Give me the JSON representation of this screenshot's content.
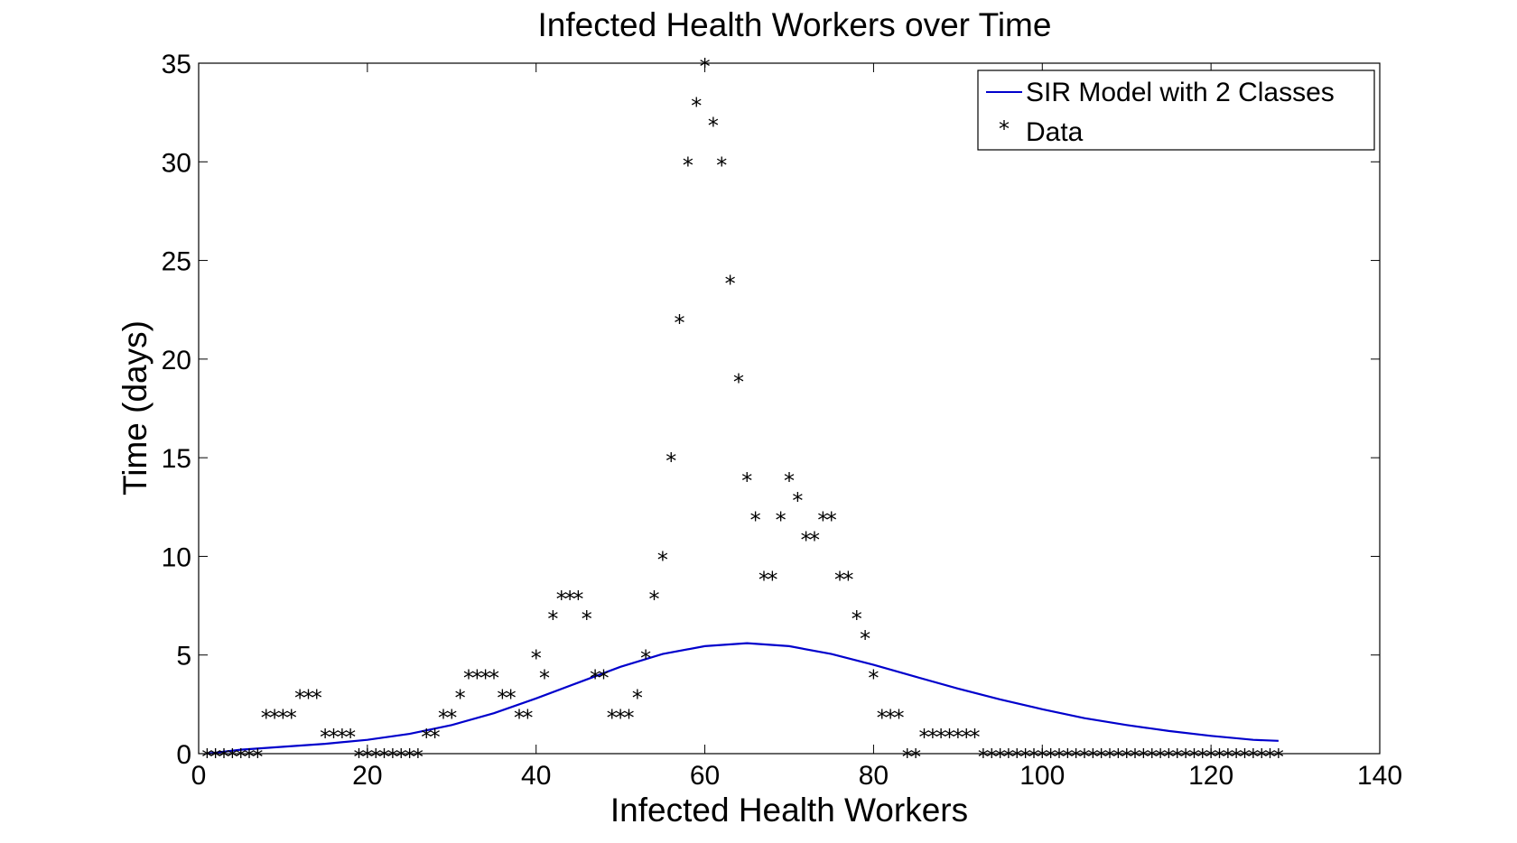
{
  "chart_data": {
    "type": "scatter",
    "title": "Infected Health Workers over Time",
    "xlabel": "Infected Health Workers",
    "ylabel": "Time (days)",
    "xlim": [
      0,
      140
    ],
    "ylim": [
      0,
      35
    ],
    "xticks": [
      "0",
      "20",
      "40",
      "60",
      "80",
      "100",
      "120",
      "140"
    ],
    "yticks": [
      "0",
      "5",
      "10",
      "15",
      "20",
      "25",
      "30",
      "35"
    ],
    "grid": false,
    "legend_position": "top-right",
    "series": [
      {
        "name": "SIR Model with 2 Classes",
        "kind": "line",
        "color": "#0000cc",
        "x": [
          1,
          5,
          10,
          15,
          20,
          25,
          30,
          35,
          40,
          45,
          50,
          55,
          60,
          65,
          70,
          75,
          80,
          85,
          90,
          95,
          100,
          105,
          110,
          115,
          120,
          125,
          128
        ],
        "y": [
          0.0,
          0.2,
          0.35,
          0.5,
          0.7,
          1.0,
          1.45,
          2.05,
          2.8,
          3.6,
          4.4,
          5.05,
          5.45,
          5.6,
          5.45,
          5.05,
          4.5,
          3.9,
          3.3,
          2.75,
          2.25,
          1.8,
          1.45,
          1.15,
          0.9,
          0.7,
          0.65
        ]
      },
      {
        "name": "Data",
        "kind": "scatter",
        "marker": "*",
        "color": "#000000",
        "x": [
          1,
          2,
          3,
          4,
          5,
          6,
          7,
          8,
          9,
          10,
          11,
          12,
          13,
          14,
          15,
          16,
          17,
          18,
          19,
          20,
          21,
          22,
          23,
          24,
          25,
          26,
          27,
          28,
          29,
          30,
          31,
          32,
          33,
          34,
          35,
          36,
          37,
          38,
          39,
          40,
          41,
          42,
          43,
          44,
          45,
          46,
          47,
          48,
          49,
          50,
          51,
          52,
          53,
          54,
          55,
          56,
          57,
          58,
          59,
          60,
          61,
          62,
          63,
          64,
          65,
          66,
          67,
          68,
          69,
          70,
          71,
          72,
          73,
          74,
          75,
          76,
          77,
          78,
          79,
          80,
          81,
          82,
          83,
          84,
          85,
          86,
          87,
          88,
          89,
          90,
          91,
          92,
          93,
          94,
          95,
          96,
          97,
          98,
          99,
          100,
          101,
          102,
          103,
          104,
          105,
          106,
          107,
          108,
          109,
          110,
          111,
          112,
          113,
          114,
          115,
          116,
          117,
          118,
          119,
          120,
          121,
          122,
          123,
          124,
          125,
          126,
          127,
          128
        ],
        "y": [
          0,
          0,
          0,
          0,
          0,
          0,
          0,
          2,
          2,
          2,
          2,
          3,
          3,
          3,
          1,
          1,
          1,
          1,
          0,
          0,
          0,
          0,
          0,
          0,
          0,
          0,
          1,
          1,
          2,
          2,
          3,
          4,
          4,
          4,
          4,
          3,
          3,
          2,
          2,
          5,
          4,
          7,
          8,
          8,
          8,
          7,
          4,
          4,
          2,
          2,
          2,
          3,
          5,
          8,
          10,
          15,
          22,
          30,
          33,
          35,
          32,
          30,
          24,
          19,
          14,
          12,
          9,
          9,
          12,
          14,
          13,
          11,
          11,
          12,
          12,
          9,
          9,
          7,
          6,
          4,
          2,
          2,
          2,
          0,
          0,
          1,
          1,
          1,
          1,
          1,
          1,
          1,
          0,
          0,
          0,
          0,
          0,
          0,
          0,
          0,
          0,
          0,
          0,
          0,
          0,
          0,
          0,
          0,
          0,
          0,
          0,
          0,
          0,
          0,
          0,
          0,
          0,
          0,
          0,
          0,
          0,
          0,
          0,
          0,
          0,
          0,
          0,
          0
        ]
      }
    ]
  }
}
